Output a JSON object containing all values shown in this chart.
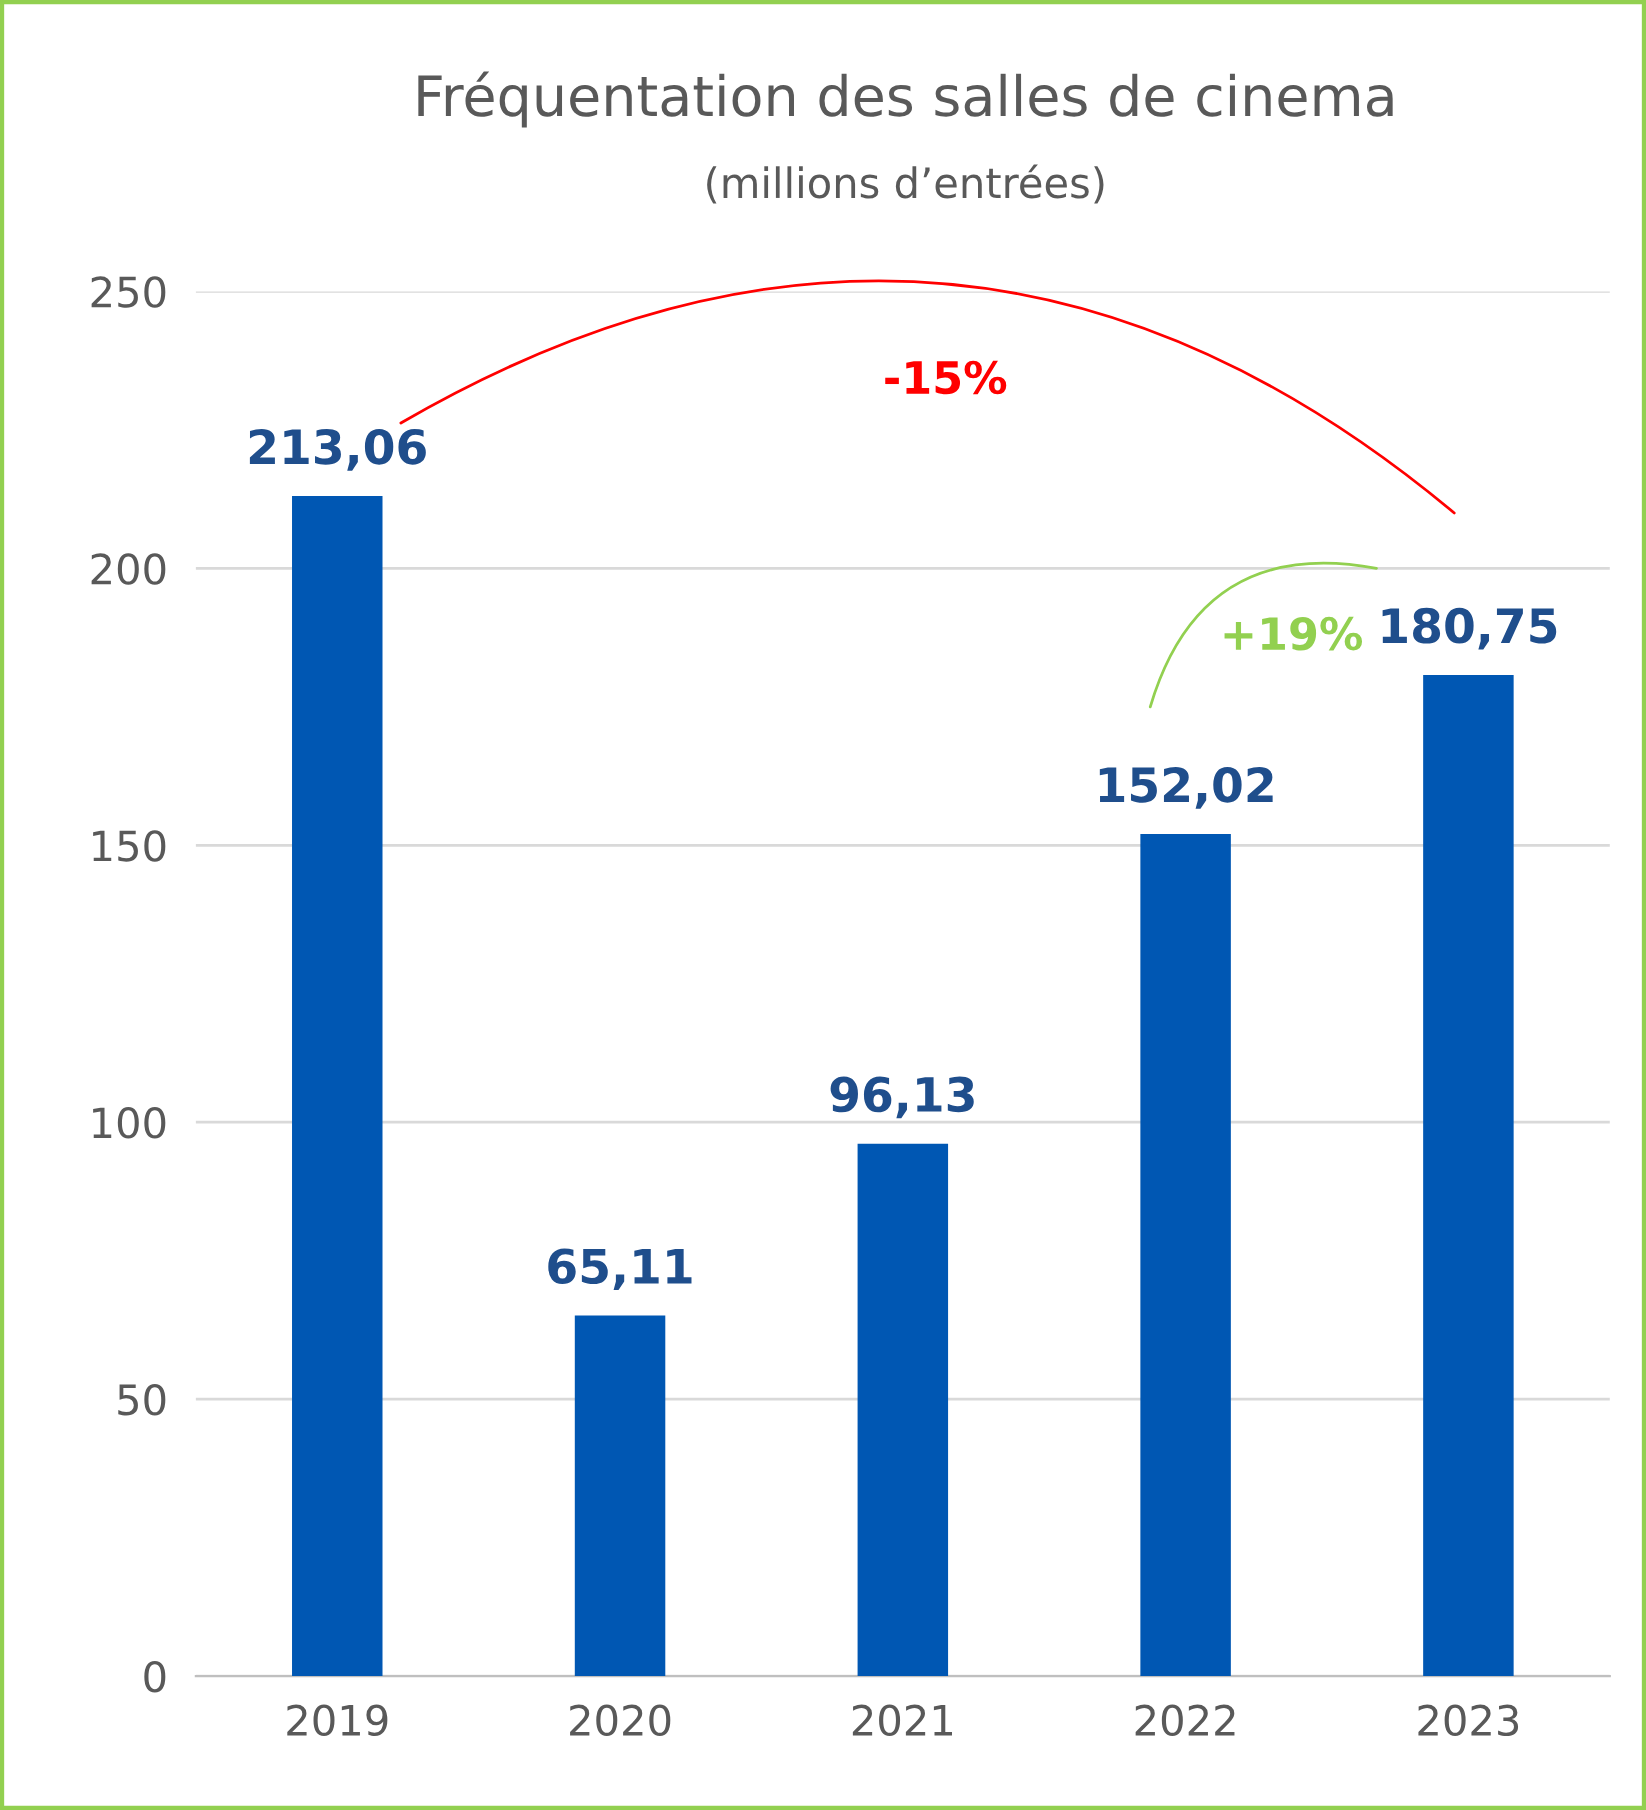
{
  "chart_data": {
    "type": "bar",
    "title": "Fréquentation des salles de cinema",
    "subtitle": "(millions d’entrées)",
    "categories": [
      "2019",
      "2020",
      "2021",
      "2022",
      "2023"
    ],
    "values": [
      213.06,
      65.11,
      96.13,
      152.02,
      180.75
    ],
    "value_labels": [
      "213,06",
      "65,11",
      "96,13",
      "152,02",
      "180,75"
    ],
    "color": "#0057b3",
    "ylim": [
      0,
      250
    ],
    "yticks": [
      0,
      50,
      100,
      150,
      200,
      250
    ],
    "grid": "y",
    "annotations": [
      "-15%",
      "+19%"
    ]
  }
}
